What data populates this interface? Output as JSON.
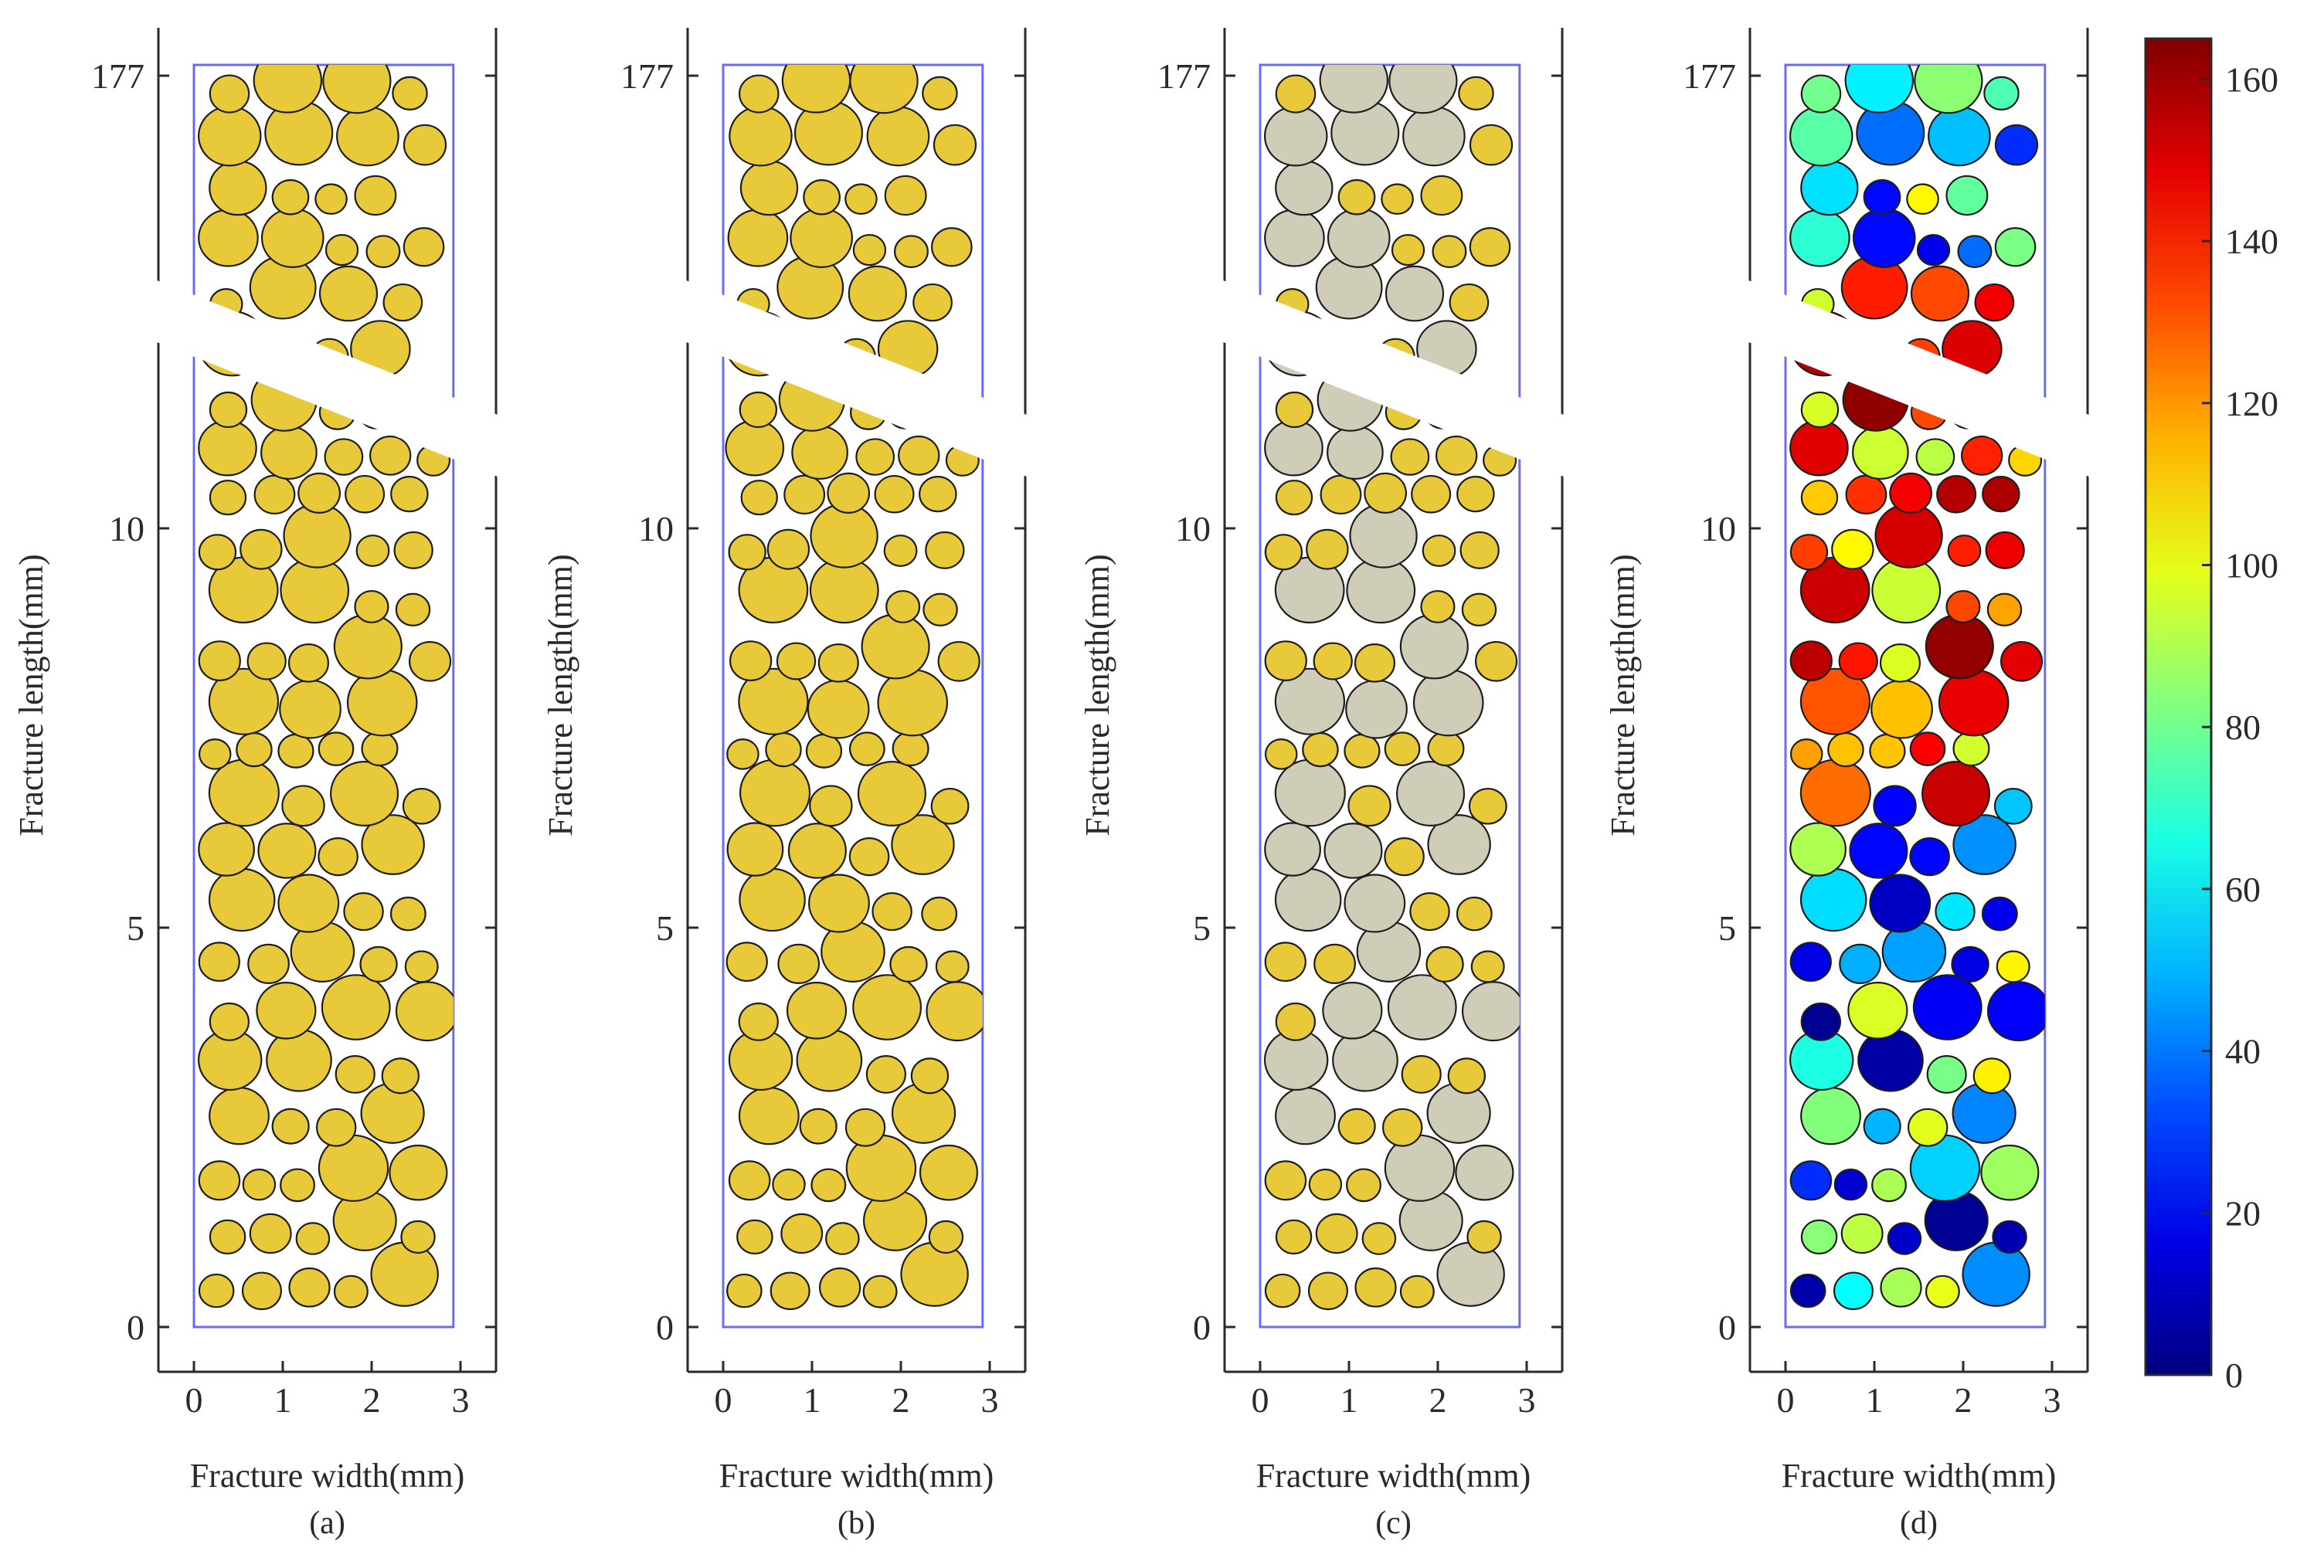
{
  "chart_data": [
    {
      "type": "scatter",
      "panel": "(a)",
      "caption": "(a)",
      "xlabel": "Fracture width(mm)",
      "ylabel": "Fracture length(mm)",
      "xlim": [
        -0.4,
        3.4
      ],
      "xticks": [
        "0",
        "1",
        "2",
        "3"
      ],
      "yticks": [
        "0",
        "5",
        "10",
        "177"
      ],
      "ylim_lower_segment": [
        0,
        12
      ],
      "ylim_upper_segment": [
        173.5,
        177
      ],
      "axis_break": true,
      "particle_fill": "gold",
      "fill_colors": {
        "gold": "#e8c93a",
        "gray": "#cfcdb8"
      }
    },
    {
      "type": "scatter",
      "panel": "(b)",
      "caption": "(b)",
      "xlabel": "Fracture width(mm)",
      "ylabel": "Fracture length(mm)",
      "xlim": [
        -0.4,
        3.4
      ],
      "xticks": [
        "0",
        "1",
        "2",
        "3"
      ],
      "yticks": [
        "0",
        "5",
        "10",
        "177"
      ],
      "ylim_lower_segment": [
        0,
        12
      ],
      "ylim_upper_segment": [
        173.5,
        177
      ],
      "axis_break": true,
      "particle_fill": "gold",
      "fill_colors": {
        "gold": "#e8c93a",
        "gray": "#cfcdb8"
      }
    },
    {
      "type": "scatter",
      "panel": "(c)",
      "caption": "(c)",
      "xlabel": "Fracture width(mm)",
      "ylabel": "Fracture length(mm)",
      "xlim": [
        -0.4,
        3.4
      ],
      "xticks": [
        "0",
        "1",
        "2",
        "3"
      ],
      "yticks": [
        "0",
        "5",
        "10",
        "177"
      ],
      "ylim_lower_segment": [
        0,
        12
      ],
      "ylim_upper_segment": [
        173.5,
        177
      ],
      "axis_break": true,
      "particle_fill": "mixed: large particles gray, small particles gold",
      "fill_colors": {
        "gold": "#e8c93a",
        "gray": "#cfcdb8"
      }
    },
    {
      "type": "scatter",
      "panel": "(d)",
      "caption": "(d)",
      "xlabel": "Fracture width(mm)",
      "ylabel": "Fracture length(mm)",
      "xlim": [
        -0.4,
        3.4
      ],
      "xticks": [
        "0",
        "1",
        "2",
        "3"
      ],
      "yticks": [
        "0",
        "5",
        "10",
        "177"
      ],
      "ylim_lower_segment": [
        0,
        12
      ],
      "ylim_upper_segment": [
        173.5,
        177
      ],
      "axis_break": true,
      "particle_fill": "colormap (jet)",
      "colorbar": {
        "colormap": "jet",
        "range": [
          0,
          165
        ],
        "ticks": [
          "0",
          "20",
          "40",
          "60",
          "80",
          "100",
          "120",
          "140",
          "160"
        ]
      }
    }
  ]
}
